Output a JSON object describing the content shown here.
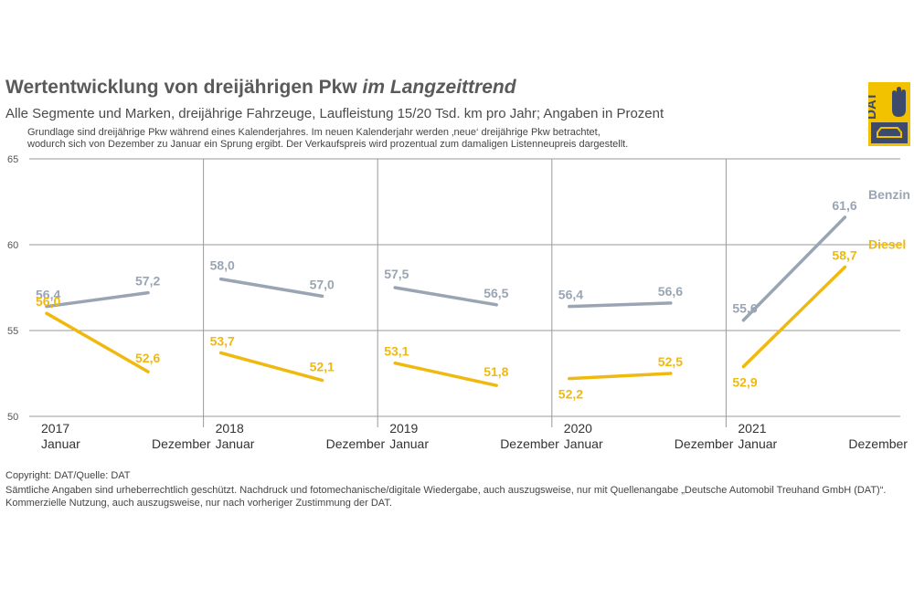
{
  "header": {
    "title_main": "Wertentwicklung von dreijährigen Pkw",
    "title_emph": "im Langzeittrend",
    "subtitle": "Alle Segmente und Marken, dreijährige Fahrzeuge, Laufleistung 15/20 Tsd. km pro Jahr; Angaben in Prozent",
    "note_line1": "Grundlage sind dreijährige Pkw während eines Kalenderjahres. Im neuen Kalenderjahr werden ‚neue‘ dreijährige Pkw betrachtet,",
    "note_line2": "wodurch sich von Dezember zu Januar ein Sprung ergibt. Der Verkaufspreis wird prozentual zum damaligen Listenneupreis dargestellt."
  },
  "logo": {
    "text": "DAT",
    "bg_color": "#f2c200",
    "box_color": "#3d4a6b"
  },
  "footer": {
    "copyright": "Copyright: DAT/Quelle: DAT",
    "legal_line1": "Sämtliche Angaben sind urheberrechtlich geschützt. Nachdruck und fotomechanische/digitale Wiedergabe, auch auszugsweise, nur mit Quellenangabe „Deutsche Automobil Treuhand GmbH (DAT)“.",
    "legal_line2": "Kommerzielle Nutzung, auch auszugsweise, nur nach vorheriger Zustimmung der DAT."
  },
  "chart_data": {
    "type": "line",
    "title": "Wertentwicklung von dreijährigen Pkw im Langzeittrend",
    "ylabel": "Prozent",
    "ylim": [
      50,
      65
    ],
    "yticks": [
      50,
      55,
      60,
      65
    ],
    "grid": true,
    "years": [
      "2017",
      "2018",
      "2019",
      "2020",
      "2021"
    ],
    "month_labels": [
      "Januar",
      "Dezember"
    ],
    "series": [
      {
        "name": "Benzin",
        "color": "#9aa5b4",
        "values": [
          [
            56.4,
            57.2
          ],
          [
            58.0,
            57.0
          ],
          [
            57.5,
            56.5
          ],
          [
            56.4,
            56.6
          ],
          [
            55.6,
            61.6
          ]
        ],
        "labels": [
          [
            "56,4",
            "57,2"
          ],
          [
            "58,0",
            "57,0"
          ],
          [
            "57,5",
            "56,5"
          ],
          [
            "56,4",
            "56,6"
          ],
          [
            "55,6",
            "61,6"
          ]
        ]
      },
      {
        "name": "Diesel",
        "color": "#f0b90f",
        "values": [
          [
            56.0,
            52.6
          ],
          [
            53.7,
            52.1
          ],
          [
            53.1,
            51.8
          ],
          [
            52.2,
            52.5
          ],
          [
            52.9,
            58.7
          ]
        ],
        "labels": [
          [
            "56,0",
            "52,6"
          ],
          [
            "53,7",
            "52,1"
          ],
          [
            "53,1",
            "51,8"
          ],
          [
            "52,2",
            "52,5"
          ],
          [
            "52,9",
            "58,7"
          ]
        ]
      }
    ],
    "legend": [
      "Benzin",
      "Diesel"
    ]
  }
}
